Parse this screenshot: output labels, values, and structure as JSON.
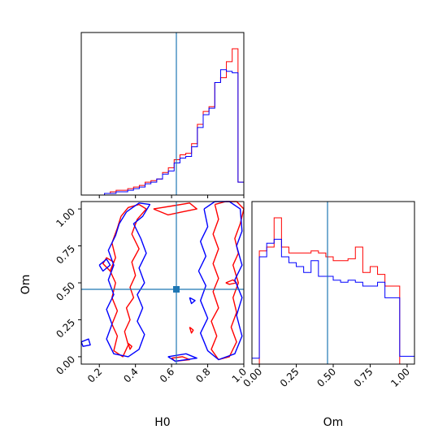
{
  "chart_data": {
    "type": "corner",
    "parameters": [
      "H0",
      "Om"
    ],
    "truth": {
      "H0": 0.65,
      "Om": 0.46,
      "color": "#1f77b4"
    },
    "series": [
      {
        "color": "#ff0000"
      },
      {
        "color": "#0000ff"
      }
    ],
    "ticks": {
      "H0": [
        "0.2",
        "0.4",
        "0.6",
        "0.8",
        "1.0"
      ],
      "Om_left": [
        "0.00",
        "0.25",
        "0.50",
        "0.75",
        "1.00"
      ],
      "Om_bottom": [
        "0.00",
        "0.25",
        "0.50",
        "0.75",
        "1.00"
      ]
    },
    "ranges": {
      "H0": [
        0.1,
        1.0
      ],
      "Om": [
        -0.05,
        1.05
      ]
    },
    "hist_H0": {
      "x_range": [
        0.1,
        1.0
      ],
      "red": [
        0,
        0,
        0,
        0,
        1,
        2,
        3,
        3,
        4,
        5,
        6,
        8,
        9,
        10,
        14,
        17,
        22,
        25,
        26,
        32,
        44,
        52,
        55,
        70,
        73,
        83,
        91,
        8
      ],
      "blue": [
        0,
        0,
        0,
        0,
        1,
        1,
        2,
        2,
        3,
        4,
        5,
        7,
        8,
        10,
        13,
        15,
        20,
        23,
        24,
        30,
        42,
        50,
        54,
        70,
        78,
        77,
        76,
        8
      ]
    },
    "hist_Om": {
      "x_range": [
        -0.05,
        1.05
      ],
      "red": [
        0,
        58,
        60,
        75,
        60,
        57,
        57,
        57,
        58,
        57,
        55,
        53,
        53,
        54,
        60,
        47,
        50,
        46,
        40,
        40,
        0,
        0
      ],
      "blue": [
        3,
        55,
        62,
        64,
        55,
        52,
        50,
        47,
        53,
        45,
        45,
        43,
        42,
        43,
        42,
        40,
        40,
        42,
        34,
        34,
        4,
        4
      ]
    },
    "contours": {
      "red": [
        [
          [
            0.32,
            0.95
          ],
          [
            0.36,
            1.01
          ],
          [
            0.42,
            1.03
          ],
          [
            0.46,
            1.0
          ],
          [
            0.41,
            0.93
          ],
          [
            0.38,
            0.83
          ],
          [
            0.42,
            0.73
          ],
          [
            0.38,
            0.64
          ],
          [
            0.4,
            0.55
          ],
          [
            0.37,
            0.47
          ],
          [
            0.39,
            0.4
          ],
          [
            0.35,
            0.33
          ],
          [
            0.37,
            0.25
          ],
          [
            0.34,
            0.17
          ],
          [
            0.36,
            0.08
          ],
          [
            0.33,
            0.0
          ],
          [
            0.28,
            0.04
          ],
          [
            0.3,
            0.14
          ],
          [
            0.27,
            0.22
          ],
          [
            0.3,
            0.31
          ],
          [
            0.27,
            0.4
          ],
          [
            0.29,
            0.5
          ],
          [
            0.26,
            0.58
          ],
          [
            0.29,
            0.67
          ],
          [
            0.27,
            0.77
          ],
          [
            0.3,
            0.87
          ],
          [
            0.32,
            0.95
          ]
        ],
        [
          [
            0.5,
            1.0
          ],
          [
            0.6,
            1.02
          ],
          [
            0.7,
            1.04
          ],
          [
            0.74,
            1.0
          ],
          [
            0.66,
            0.98
          ],
          [
            0.58,
            0.96
          ],
          [
            0.5,
            1.0
          ]
        ],
        [
          [
            0.84,
            1.03
          ],
          [
            0.9,
            1.05
          ],
          [
            0.96,
            1.05
          ],
          [
            1.0,
            1.0
          ],
          [
            0.98,
            0.9
          ],
          [
            0.95,
            0.8
          ],
          [
            0.97,
            0.7
          ],
          [
            0.94,
            0.62
          ],
          [
            0.97,
            0.5
          ],
          [
            0.94,
            0.4
          ],
          [
            0.96,
            0.3
          ],
          [
            0.93,
            0.2
          ],
          [
            0.96,
            0.1
          ],
          [
            0.92,
            0.0
          ],
          [
            0.86,
            -0.02
          ],
          [
            0.82,
            0.05
          ],
          [
            0.85,
            0.14
          ],
          [
            0.82,
            0.24
          ],
          [
            0.86,
            0.33
          ],
          [
            0.83,
            0.44
          ],
          [
            0.86,
            0.53
          ],
          [
            0.83,
            0.63
          ],
          [
            0.86,
            0.73
          ],
          [
            0.83,
            0.83
          ],
          [
            0.86,
            0.93
          ],
          [
            0.84,
            1.03
          ]
        ],
        [
          [
            0.26,
            0.58
          ],
          [
            0.22,
            0.63
          ],
          [
            0.24,
            0.67
          ],
          [
            0.28,
            0.64
          ],
          [
            0.26,
            0.58
          ]
        ],
        [
          [
            0.7,
            0.2
          ],
          [
            0.72,
            0.18
          ],
          [
            0.71,
            0.16
          ],
          [
            0.7,
            0.2
          ]
        ],
        [
          [
            0.36,
            0.09
          ],
          [
            0.38,
            0.07
          ],
          [
            0.37,
            0.05
          ],
          [
            0.36,
            0.09
          ]
        ],
        [
          [
            0.9,
            0.5
          ],
          [
            0.94,
            0.52
          ],
          [
            0.96,
            0.5
          ],
          [
            0.92,
            0.49
          ],
          [
            0.9,
            0.5
          ]
        ],
        [
          [
            0.6,
            -0.01
          ],
          [
            0.66,
            0.0
          ],
          [
            0.7,
            -0.02
          ],
          [
            0.62,
            -0.03
          ],
          [
            0.6,
            -0.01
          ]
        ]
      ],
      "blue": [
        [
          [
            0.35,
            0.98
          ],
          [
            0.42,
            1.04
          ],
          [
            0.48,
            1.03
          ],
          [
            0.44,
            0.95
          ],
          [
            0.39,
            0.9
          ],
          [
            0.43,
            0.8
          ],
          [
            0.46,
            0.7
          ],
          [
            0.42,
            0.6
          ],
          [
            0.45,
            0.5
          ],
          [
            0.41,
            0.42
          ],
          [
            0.44,
            0.33
          ],
          [
            0.41,
            0.24
          ],
          [
            0.45,
            0.15
          ],
          [
            0.42,
            0.05
          ],
          [
            0.36,
            0.0
          ],
          [
            0.28,
            0.02
          ],
          [
            0.24,
            0.12
          ],
          [
            0.27,
            0.22
          ],
          [
            0.24,
            0.32
          ],
          [
            0.28,
            0.42
          ],
          [
            0.25,
            0.52
          ],
          [
            0.28,
            0.62
          ],
          [
            0.25,
            0.72
          ],
          [
            0.29,
            0.82
          ],
          [
            0.31,
            0.9
          ],
          [
            0.35,
            0.98
          ]
        ],
        [
          [
            0.78,
            1.0
          ],
          [
            0.84,
            1.05
          ],
          [
            0.92,
            1.05
          ],
          [
            0.98,
            1.0
          ],
          [
            0.99,
            0.85
          ],
          [
            0.96,
            0.75
          ],
          [
            0.99,
            0.62
          ],
          [
            0.95,
            0.52
          ],
          [
            0.99,
            0.4
          ],
          [
            0.96,
            0.28
          ],
          [
            0.99,
            0.14
          ],
          [
            0.95,
            0.02
          ],
          [
            0.86,
            -0.02
          ],
          [
            0.8,
            0.04
          ],
          [
            0.76,
            0.16
          ],
          [
            0.8,
            0.26
          ],
          [
            0.76,
            0.38
          ],
          [
            0.79,
            0.48
          ],
          [
            0.75,
            0.58
          ],
          [
            0.79,
            0.68
          ],
          [
            0.76,
            0.78
          ],
          [
            0.8,
            0.88
          ],
          [
            0.78,
            1.0
          ]
        ],
        [
          [
            0.1,
            0.1
          ],
          [
            0.14,
            0.12
          ],
          [
            0.15,
            0.08
          ],
          [
            0.11,
            0.07
          ],
          [
            0.1,
            0.1
          ]
        ],
        [
          [
            0.2,
            0.62
          ],
          [
            0.24,
            0.66
          ],
          [
            0.26,
            0.62
          ],
          [
            0.22,
            0.58
          ],
          [
            0.2,
            0.62
          ]
        ],
        [
          [
            0.7,
            0.4
          ],
          [
            0.73,
            0.38
          ],
          [
            0.71,
            0.36
          ],
          [
            0.7,
            0.4
          ]
        ],
        [
          [
            0.58,
            0.0
          ],
          [
            0.68,
            0.02
          ],
          [
            0.74,
            -0.01
          ],
          [
            0.62,
            -0.03
          ],
          [
            0.58,
            0.0
          ]
        ]
      ]
    },
    "xlabels": {
      "bottom_left": "H0",
      "bottom_right": "Om"
    },
    "ylabels": {
      "left_bottom": "Om"
    }
  }
}
